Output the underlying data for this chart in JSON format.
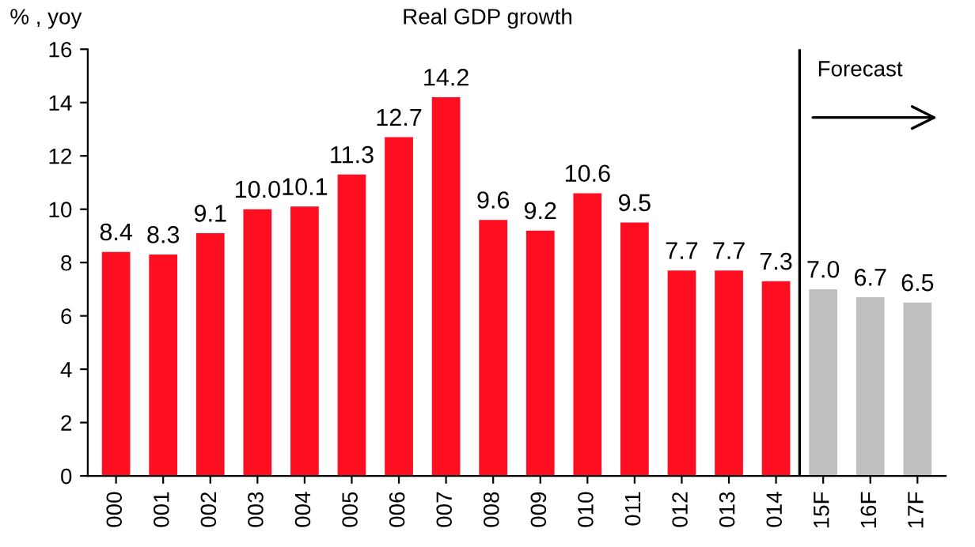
{
  "chart_data": {
    "type": "bar",
    "title": "Real GDP growth",
    "ylabel": "% , yoy",
    "categories": [
      "000",
      "001",
      "002",
      "003",
      "004",
      "005",
      "006",
      "007",
      "008",
      "009",
      "010",
      "011",
      "012",
      "013",
      "014",
      "15F",
      "16F",
      "17F"
    ],
    "values": [
      8.4,
      8.3,
      9.1,
      10.0,
      10.1,
      11.3,
      12.7,
      14.2,
      9.6,
      9.2,
      10.6,
      9.5,
      7.7,
      7.7,
      7.3,
      7.0,
      6.7,
      6.5
    ],
    "value_labels": [
      "8.4",
      "8.3",
      "9.1",
      "10.0",
      "10.1",
      "11.3",
      "12.7",
      "14.2",
      "9.6",
      "9.2",
      "10.6",
      "9.5",
      "7.7",
      "7.7",
      "7.3",
      "7.0",
      "6.7",
      "6.5"
    ],
    "colors": [
      "#ff0d21",
      "#ff0d21",
      "#ff0d21",
      "#ff0d21",
      "#ff0d21",
      "#ff0d21",
      "#ff0d21",
      "#ff0d21",
      "#ff0d21",
      "#ff0d21",
      "#ff0d21",
      "#ff0d21",
      "#ff0d21",
      "#ff0d21",
      "#ff0d21",
      "#bfbfbf",
      "#bfbfbf",
      "#bfbfbf"
    ],
    "ylim": [
      0,
      16
    ],
    "yticks": [
      0,
      2,
      4,
      6,
      8,
      10,
      12,
      14,
      16
    ],
    "grid": false,
    "annotations": [
      "Forecast"
    ]
  }
}
